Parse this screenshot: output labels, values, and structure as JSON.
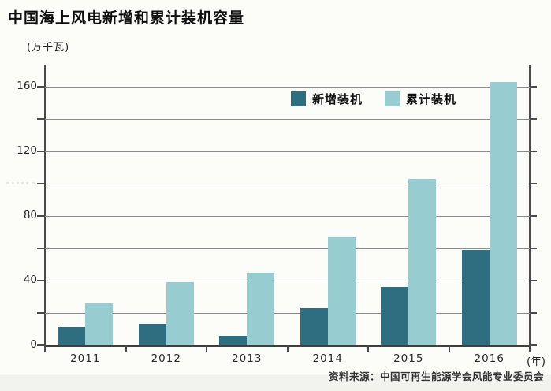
{
  "title": "中国海上风电新增和累计装机容量",
  "y_unit_label": "(万千瓦)",
  "x_unit_label": "(年)",
  "source_note": "资料来源：中国可再生能源学会风能专业委员会",
  "colors": {
    "new_installed": "#2e6e80",
    "cumulative_installed": "#97cdd1",
    "grid": "#8b8b8b",
    "axis": "#4a4a4a",
    "background": "#fcfcf9",
    "footer_strip": "#f2f2ee"
  },
  "chart_data": {
    "type": "bar",
    "title": "中国海上风电新增和累计装机容量",
    "ylabel": "(万千瓦)",
    "xlabel": "(年)",
    "categories": [
      "2011",
      "2012",
      "2013",
      "2014",
      "2015",
      "2016"
    ],
    "series": [
      {
        "name": "新增装机",
        "color": "#2e6e80",
        "values": [
          11,
          13,
          6,
          23,
          36,
          59
        ]
      },
      {
        "name": "累计装机",
        "color": "#97cdd1",
        "values": [
          26,
          39,
          45,
          67,
          103,
          163
        ]
      }
    ],
    "ylim": [
      0,
      160
    ],
    "ytick_major": 40,
    "ytick_minor": 20,
    "grid": true,
    "legend_position": "top-right-inside"
  }
}
